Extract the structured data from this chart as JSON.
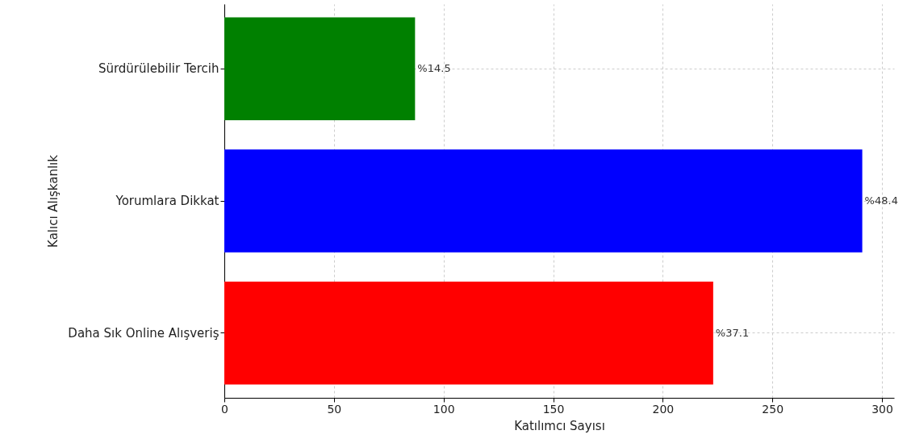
{
  "chart_data": {
    "type": "bar",
    "orientation": "horizontal",
    "xlabel": "Katılımcı Sayısı",
    "ylabel": "Kalıcı Alışkanlık",
    "categories": [
      "Sürdürülebilir Tercih",
      "Yorumlara Dikkat",
      "Daha Sık Online Alışveriş"
    ],
    "values": [
      87,
      291,
      223
    ],
    "colors": [
      "#008000",
      "#0000ff",
      "#ff0000"
    ],
    "annotations": [
      {
        "text": "%14.5",
        "x": 87,
        "y": "Sürdürülebilir Tercih"
      },
      {
        "text": "%48.4",
        "x": 291,
        "y": "Yorumlara Dikkat"
      },
      {
        "text": "%37.1",
        "x": 223,
        "y": "Daha Sık Online Alışveriş"
      }
    ],
    "xlim": [
      0,
      305.5
    ],
    "xticks": [
      0,
      50,
      100,
      150,
      200,
      250,
      300
    ],
    "grid": true
  }
}
